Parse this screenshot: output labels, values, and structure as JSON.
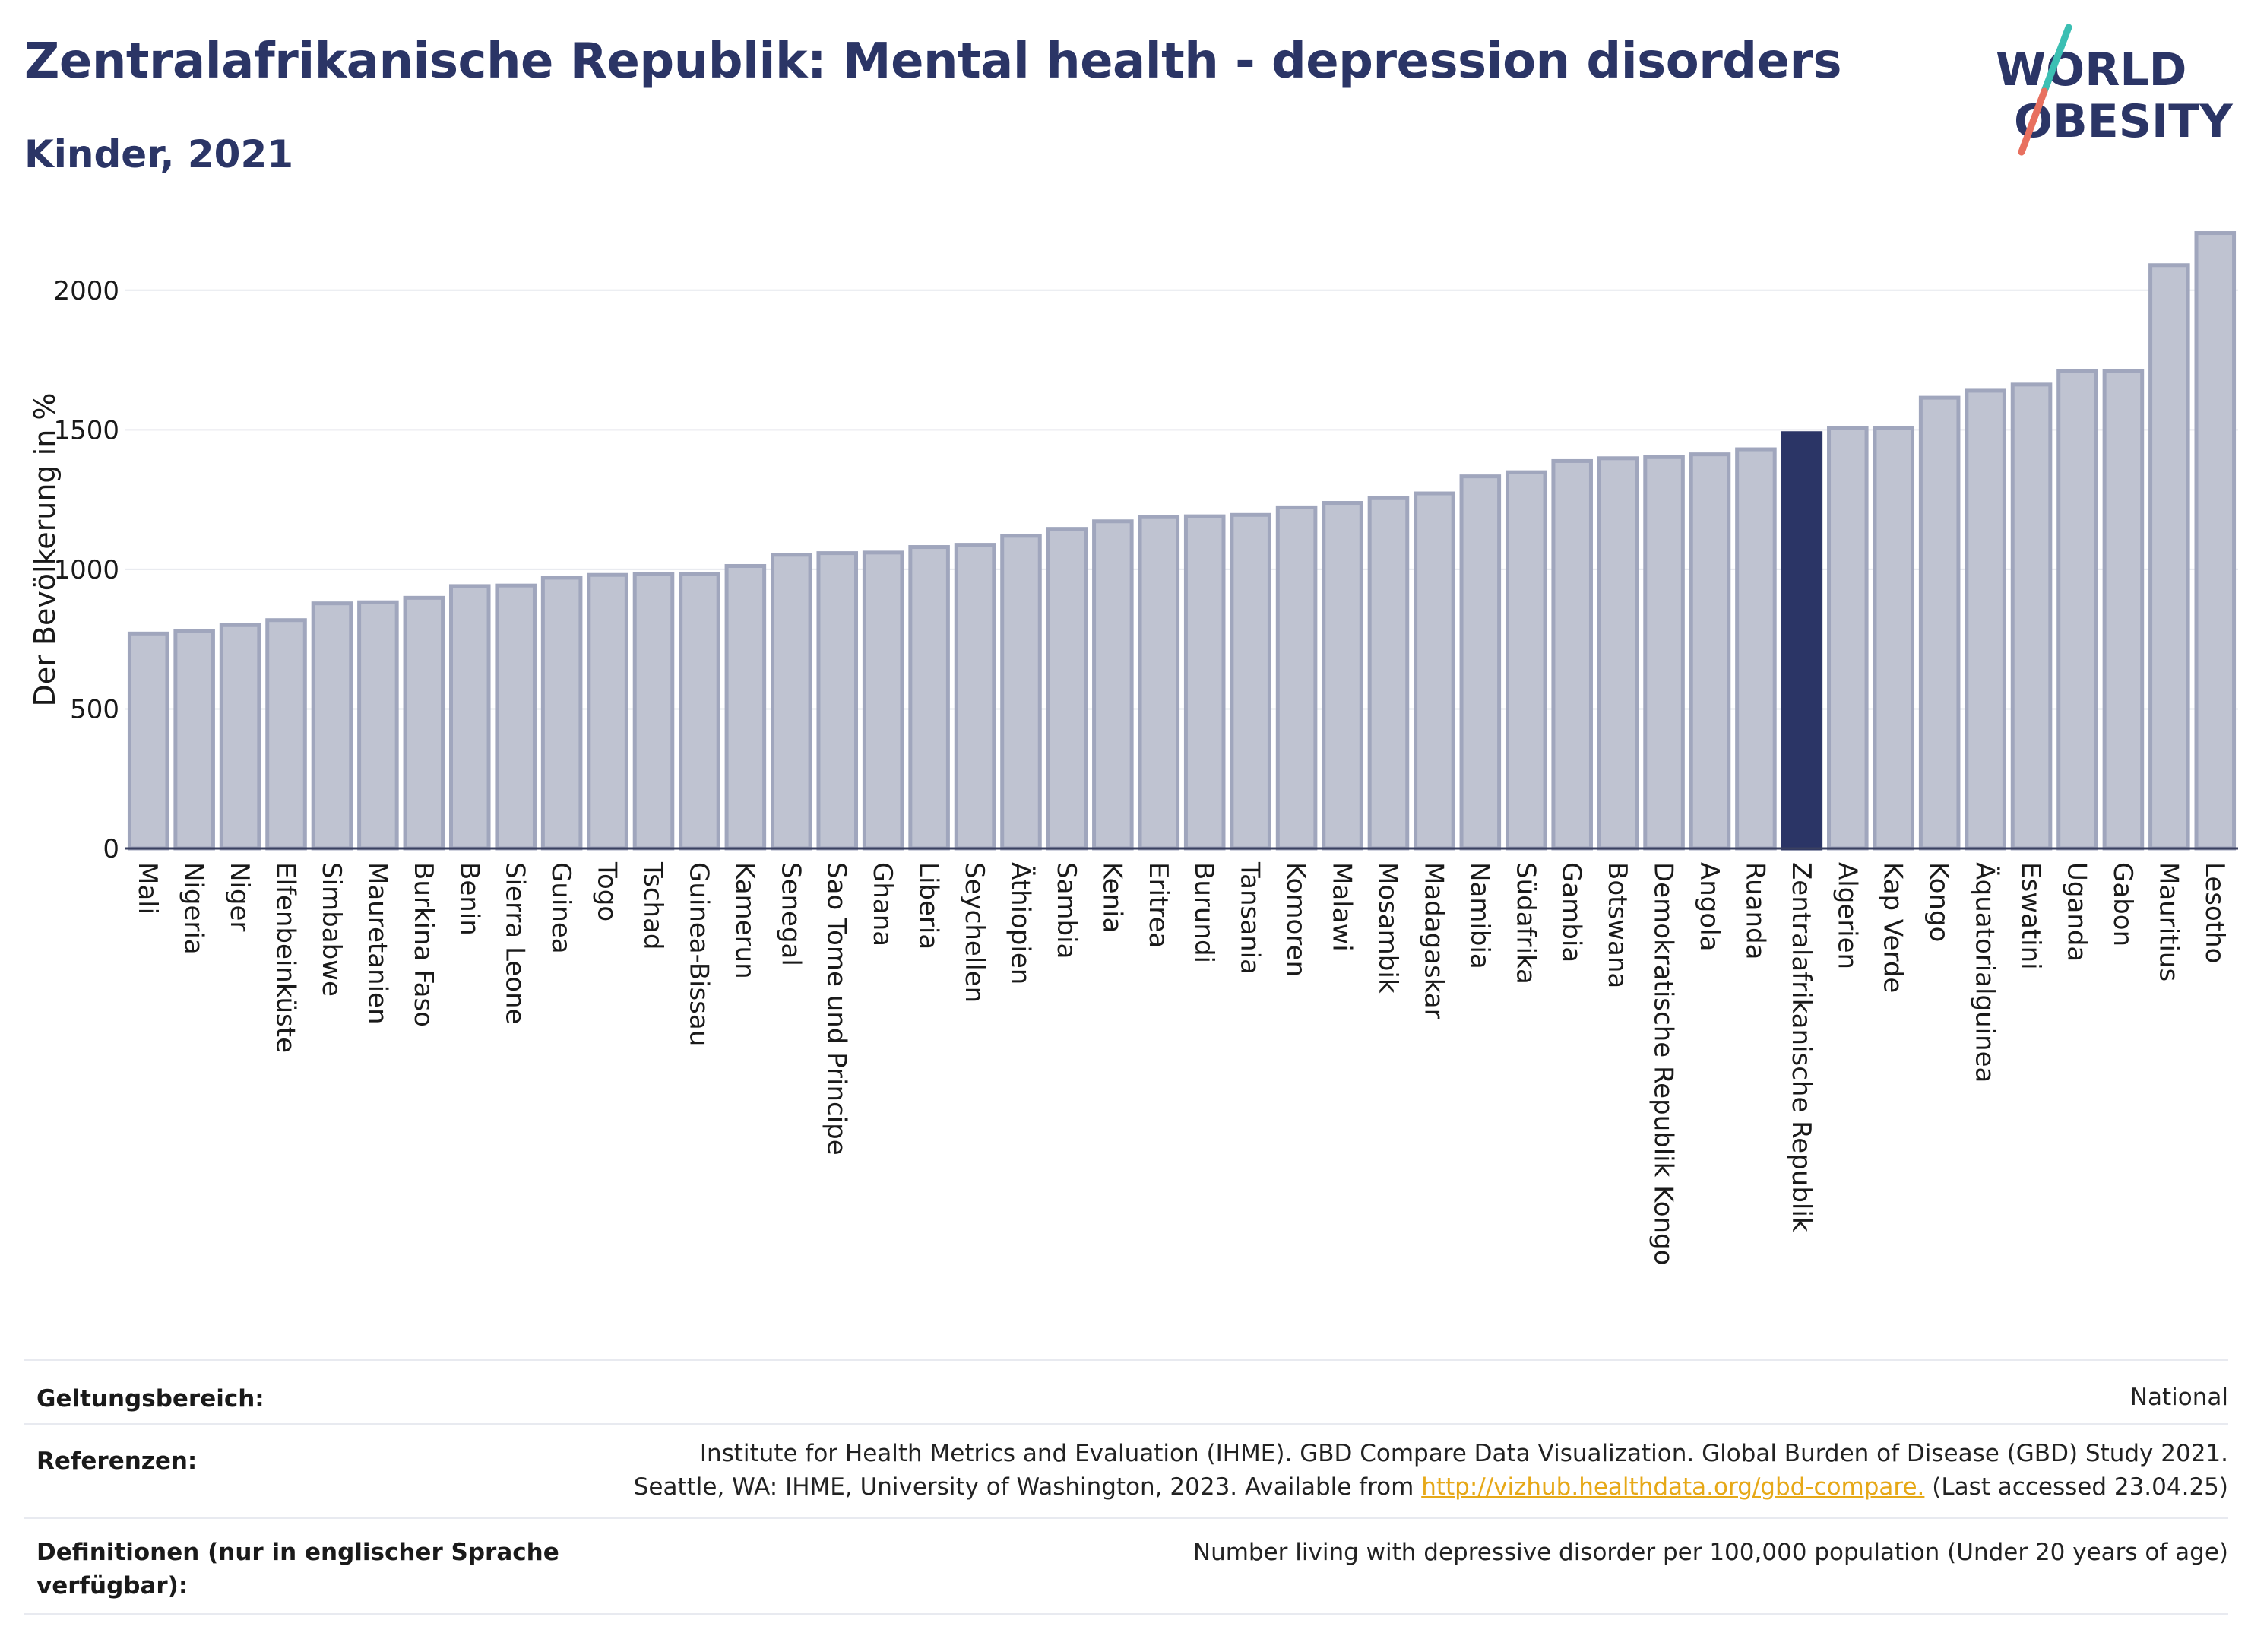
{
  "header": {
    "title": "Zentralafrikanische Republik: Mental health - depression disorders",
    "subtitle": "Kinder, 2021"
  },
  "logo": {
    "line1": "WORLD",
    "line2": "OBESITY",
    "colors": {
      "text": "#2b3566",
      "slash_top": "#3bbfb3",
      "slash_bottom": "#e8705f"
    }
  },
  "chart_data": {
    "type": "bar",
    "title": "Zentralafrikanische Republik: Mental health - depression disorders",
    "subtitle": "Kinder, 2021",
    "ylabel": "Der Bevölkerung in %",
    "xlabel": "",
    "ylim": [
      0,
      2250
    ],
    "yticks": [
      0,
      500,
      1000,
      1500,
      2000
    ],
    "grid": true,
    "highlight": "Zentralafrikanische Republik",
    "colors": {
      "bar": "#bfc3d1",
      "bar_edge": "#a0a6bd",
      "highlight": "#2b3566",
      "grid": "#e6e8ee",
      "axis": "#3a4060"
    },
    "categories": [
      "Mali",
      "Nigeria",
      "Niger",
      "Elfenbeinküste",
      "Simbabwe",
      "Mauretanien",
      "Burkina Faso",
      "Benin",
      "Sierra Leone",
      "Guinea",
      "Togo",
      "Tschad",
      "Guinea-Bissau",
      "Kamerun",
      "Senegal",
      "Sao Tome und Principe",
      "Ghana",
      "Liberia",
      "Seychellen",
      "Äthiopien",
      "Sambia",
      "Kenia",
      "Eritrea",
      "Burundi",
      "Tansania",
      "Komoren",
      "Malawi",
      "Mosambik",
      "Madagaskar",
      "Namibia",
      "Südafrika",
      "Gambia",
      "Botswana",
      "Demokratische Republik Kongo",
      "Angola",
      "Ruanda",
      "Zentralafrikanische Republik",
      "Algerien",
      "Kap Verde",
      "Kongo",
      "Äquatorialguinea",
      "Eswatini",
      "Uganda",
      "Gabon",
      "Mauritius",
      "Lesotho"
    ],
    "values": [
      770,
      778,
      800,
      818,
      878,
      882,
      898,
      940,
      942,
      970,
      980,
      982,
      982,
      1012,
      1052,
      1058,
      1060,
      1080,
      1088,
      1120,
      1145,
      1172,
      1187,
      1190,
      1195,
      1222,
      1238,
      1255,
      1272,
      1333,
      1348,
      1388,
      1398,
      1402,
      1412,
      1430,
      1488,
      1505,
      1505,
      1615,
      1640,
      1662,
      1710,
      1712,
      2090,
      2205
    ]
  },
  "footer": {
    "scope_label": "Geltungsbereich:",
    "scope_value": "National",
    "references_label": "Referenzen:",
    "references_line1": "Institute for Health Metrics and Evaluation (IHME). GBD Compare Data Visualization. Global Burden of Disease (GBD) Study 2021.",
    "references_line2_pre": "Seattle, WA: IHME, University of Washington, 2023. Available from ",
    "references_link": "http://vizhub.healthdata.org/gbd-compare.",
    "references_line2_post": " (Last accessed 23.04.25)",
    "definitions_label_line1": "Definitionen (nur in englischer Sprache",
    "definitions_label_line2": "verfügbar):",
    "definitions_value": "Number living with depressive disorder per 100,000 population (Under 20 years of age)"
  }
}
